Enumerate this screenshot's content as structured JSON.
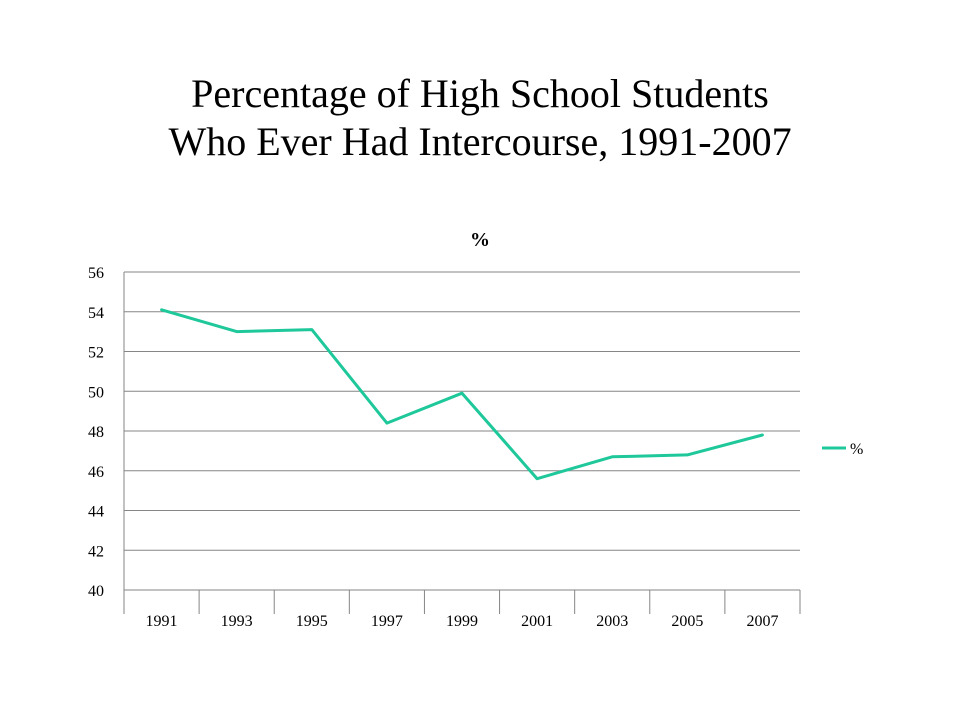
{
  "slide": {
    "title_line1": "Percentage of High School Students",
    "title_line2": "Who Ever Had Intercourse, 1991-2007"
  },
  "chart_data": {
    "type": "line",
    "title": "%",
    "categories": [
      "1991",
      "1993",
      "1995",
      "1997",
      "1999",
      "2001",
      "2003",
      "2005",
      "2007"
    ],
    "series": [
      {
        "name": "%",
        "values": [
          54.1,
          53.0,
          53.1,
          48.4,
          49.9,
          45.6,
          46.7,
          46.8,
          47.8
        ],
        "color": "#1fc89a"
      }
    ],
    "ylim": [
      40,
      56
    ],
    "yticks": [
      "40",
      "42",
      "44",
      "46",
      "48",
      "50",
      "52",
      "54",
      "56"
    ],
    "xlabel": "",
    "ylabel": "",
    "grid": true,
    "legend": "right",
    "gridline_color": "#868686"
  }
}
